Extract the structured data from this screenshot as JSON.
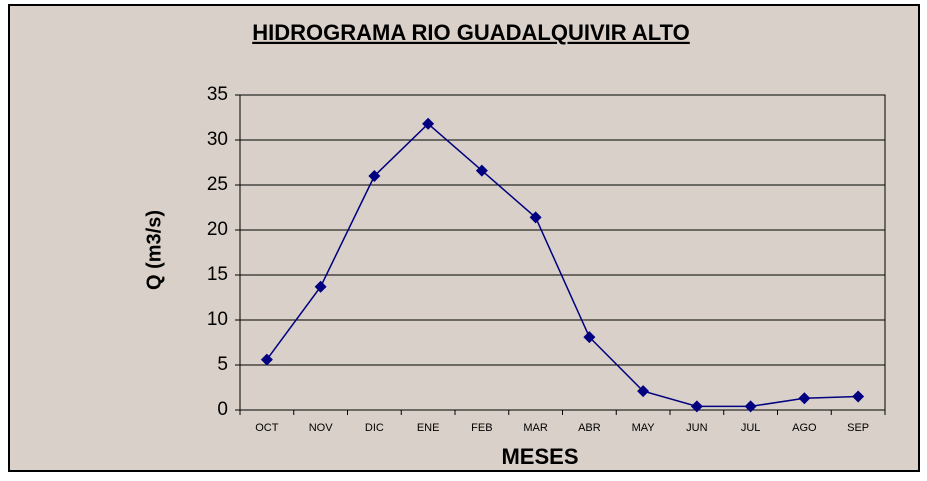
{
  "chart_data": {
    "type": "line",
    "title": "HIDROGRAMA RIO GUADALQUIVIR ALTO",
    "x_label": "MESES",
    "y_label": "Q (m3/s)",
    "categories": [
      "OCT",
      "NOV",
      "DIC",
      "ENE",
      "FEB",
      "MAR",
      "ABR",
      "MAY",
      "JUN",
      "JUL",
      "AGO",
      "SEP"
    ],
    "series": [
      {
        "name": "Q",
        "color": "#000080",
        "values": [
          5.6,
          13.7,
          26.0,
          31.8,
          26.6,
          21.4,
          8.1,
          2.1,
          0.4,
          0.4,
          1.3,
          1.5
        ]
      }
    ],
    "ylim": [
      0,
      35
    ],
    "yticks": [
      0,
      5,
      10,
      15,
      20,
      25,
      30,
      35
    ],
    "grid": true
  }
}
